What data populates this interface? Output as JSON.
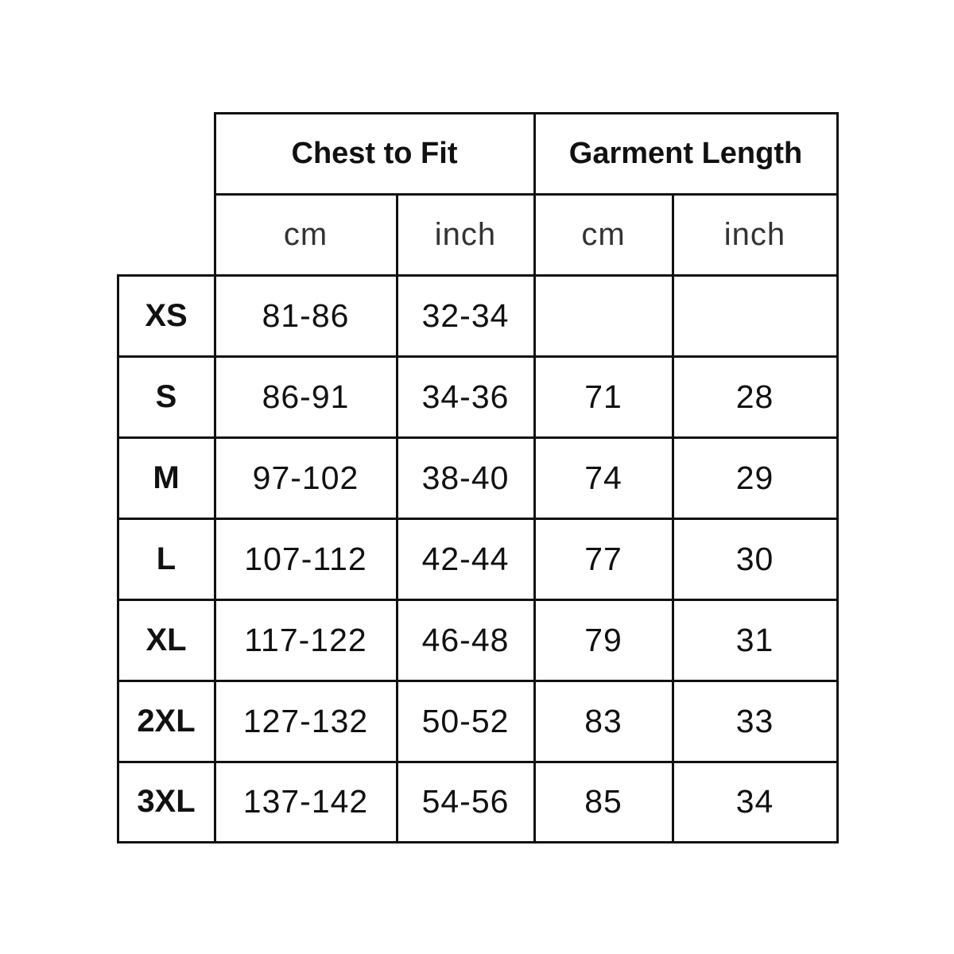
{
  "table": {
    "group_headers": [
      "Chest to Fit",
      "Garment Length"
    ],
    "unit_headers": [
      "cm",
      "inch",
      "cm",
      "inch"
    ],
    "rows": [
      {
        "size": "XS",
        "chest_cm": "81-86",
        "chest_inch": "32-34",
        "length_cm": "",
        "length_inch": ""
      },
      {
        "size": "S",
        "chest_cm": "86-91",
        "chest_inch": "34-36",
        "length_cm": "71",
        "length_inch": "28"
      },
      {
        "size": "M",
        "chest_cm": "97-102",
        "chest_inch": "38-40",
        "length_cm": "74",
        "length_inch": "29"
      },
      {
        "size": "L",
        "chest_cm": "107-112",
        "chest_inch": "42-44",
        "length_cm": "77",
        "length_inch": "30"
      },
      {
        "size": "XL",
        "chest_cm": "117-122",
        "chest_inch": "46-48",
        "length_cm": "79",
        "length_inch": "31"
      },
      {
        "size": "2XL",
        "chest_cm": "127-132",
        "chest_inch": "50-52",
        "length_cm": "83",
        "length_inch": "33"
      },
      {
        "size": "3XL",
        "chest_cm": "137-142",
        "chest_inch": "54-56",
        "length_cm": "85",
        "length_inch": "34"
      }
    ]
  }
}
